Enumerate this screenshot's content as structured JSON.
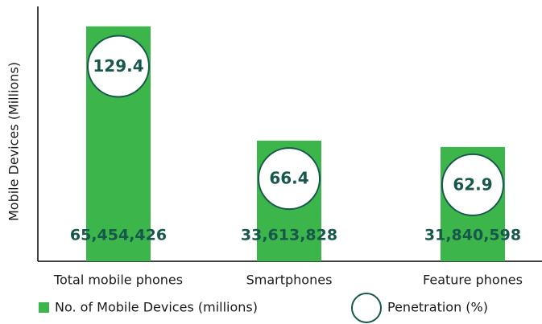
{
  "chart_data": {
    "type": "bar",
    "y_label": "Mobile  Devices (Millions)",
    "categories": [
      "Total mobile phones",
      "Smartphones",
      "Feature phones"
    ],
    "series": [
      {
        "name": "No. of Mobile Devices (millions)",
        "color": "#3cb54a",
        "values": [
          65.454426,
          33.613828,
          31.840598
        ],
        "value_labels": [
          "65,454,426",
          "33,613,828",
          "31,840,598"
        ]
      },
      {
        "name": "Penetration (%)",
        "color": "#17584c",
        "axis": "y2",
        "values": [
          129.4,
          66.4,
          62.9
        ]
      }
    ],
    "ylim": [
      0,
      71
    ],
    "y2lim": [
      20,
      163
    ],
    "grid": false
  }
}
